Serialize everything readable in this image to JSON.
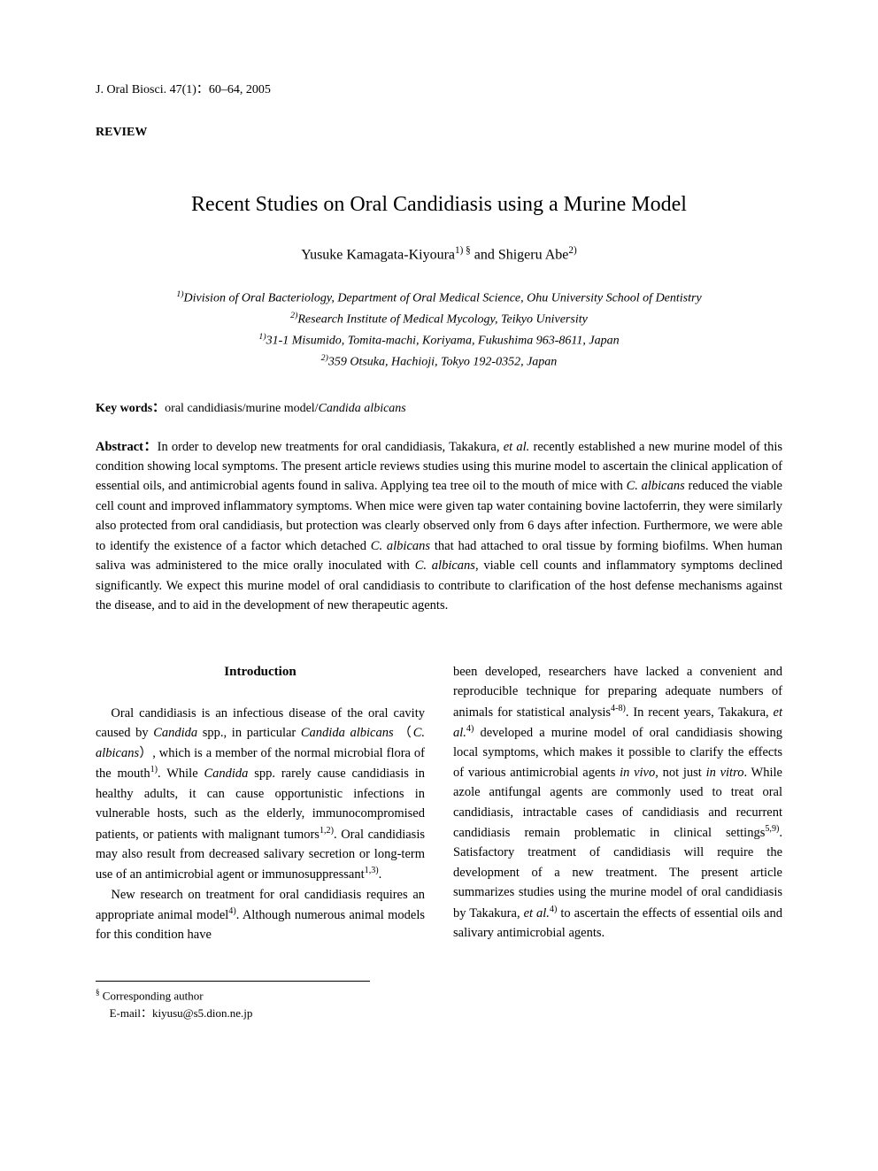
{
  "journal_ref": "J. Oral Biosci. 47(1)：60–64, 2005",
  "section_label": "REVIEW",
  "title": "Recent Studies on Oral Candidiasis using a Murine Model",
  "authors_html": "Yusuke Kamagata-Kiyoura<span class=\"sup\">1) §</span> and Shigeru Abe<span class=\"sup\">2)</span>",
  "affiliations": {
    "line1_html": "<span class=\"sup\">1)</span>Division of Oral Bacteriology, Department of Oral Medical Science, Ohu University School of Dentistry",
    "line2_html": "<span class=\"sup\">2)</span>Research Institute of Medical Mycology, Teikyo University",
    "line3_html": "<span class=\"sup\">1)</span>31-1 Misumido, Tomita-machi, Koriyama, Fukushima 963-8611, Japan",
    "line4_html": "<span class=\"sup\">2)</span>359 Otsuka, Hachioji, Tokyo 192-0352, Japan"
  },
  "keywords": {
    "label": "Key words：",
    "text_html": "oral candidiasis/murine model/<span class=\"ital\">Candida albicans</span>"
  },
  "abstract": {
    "label": "Abstract：",
    "text_html": "In order to develop new treatments for oral candidiasis, Takakura, <span class=\"ital\">et al.</span> recently established a new murine model of this condition showing local symptoms. The present article reviews studies using this murine model to ascertain the clinical application of essential oils, and antimicrobial agents found in saliva. Applying tea tree oil to the mouth of mice with <span class=\"ital\">C. albicans</span> reduced the viable cell count and improved inflammatory symptoms. When mice were given tap water containing bovine lactoferrin, they were similarly also protected from oral candidiasis, but protection was clearly observed only from 6 days after infection. Furthermore, we were able to identify the existence of a factor which detached <span class=\"ital\">C. albicans</span> that had attached to oral tissue by forming biofilms. When human saliva was administered to the mice orally inoculated with <span class=\"ital\">C. albicans</span>, viable cell counts and inflammatory symptoms declined significantly. We expect this murine model of oral candidiasis to contribute to clarification of the host defense mechanisms against the disease, and to aid in the development of new therapeutic agents."
  },
  "introduction": {
    "heading": "Introduction",
    "left": {
      "p1_html": "Oral candidiasis is an infectious disease of the oral cavity caused by <span class=\"ital\">Candida</span> spp., in particular <span class=\"ital\">Candida albicans </span>（<span class=\"ital\">C. albicans</span>）, which is a member of the normal microbial flora of the mouth<span class=\"sup\">1)</span>. While <span class=\"ital\">Candida</span> spp. rarely cause candidiasis in healthy adults, it can cause opportunistic infections in vulnerable hosts, such as the elderly, immunocompromised patients, or patients with malignant tumors<span class=\"sup\">1,2)</span>. Oral candidiasis may also result from decreased salivary secretion or long-term use of an antimicrobial agent or immunosuppressant<span class=\"sup\">1,3)</span>.",
      "p2_html": "New research on treatment for oral candidiasis requires an appropriate animal model<span class=\"sup\">4)</span>. Although numerous animal models for this condition have"
    },
    "right": {
      "p1_html": "been developed, researchers have lacked a convenient and reproducible technique for preparing adequate numbers of animals for statistical analysis<span class=\"sup\">4-8)</span>. In recent years, Takakura, <span class=\"ital\">et al.</span><span class=\"sup\">4)</span> developed a murine model of oral candidiasis showing local symptoms, which makes it possible to clarify the effects of various antimicrobial agents <span class=\"ital\">in vivo</span>, not just <span class=\"ital\">in vitro</span>. While azole antifungal agents are commonly used to treat oral candidiasis, intractable cases of candidiasis and recurrent candidiasis remain problematic in clinical settings<span class=\"sup\">5,9)</span>. Satisfactory treatment of candidiasis will require the development of a new treatment. The present article summarizes studies using the murine model of oral candidiasis by Takakura, <span class=\"ital\">et al.</span><span class=\"sup\">4)</span> to ascertain the effects of essential oils and salivary antimicrobial agents."
    }
  },
  "footnote": {
    "line1_html": "<span class=\"sup\">§</span> Corresponding author",
    "line2": "E-mail：kiyusu@s5.dion.ne.jp"
  }
}
